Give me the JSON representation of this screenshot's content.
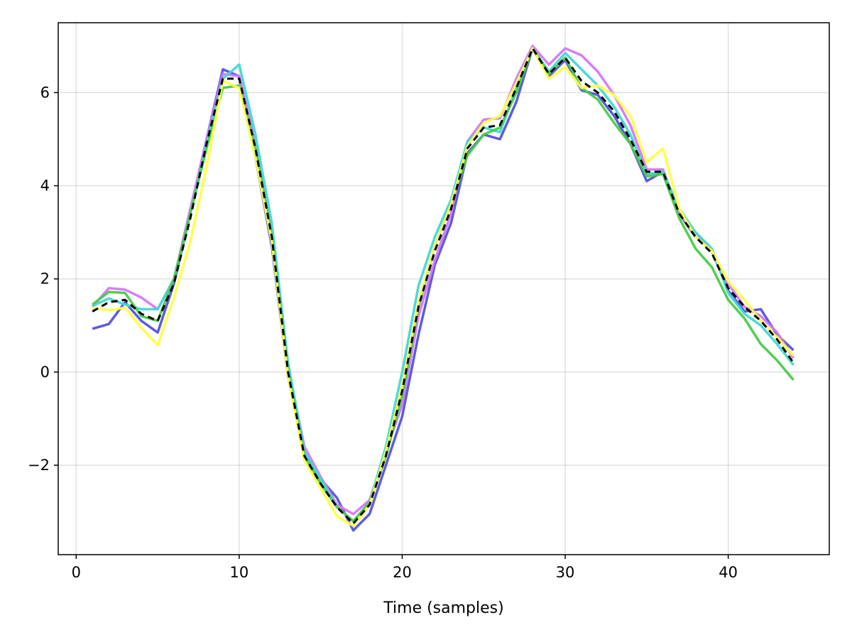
{
  "chart_data": {
    "type": "line",
    "title": "",
    "xlabel": "Time (samples)",
    "ylabel": "",
    "xlim": [
      -1.1,
      46.2
    ],
    "ylim": [
      -3.92,
      7.5
    ],
    "grid": true,
    "legend": "none",
    "x_ticks": [
      0,
      10,
      20,
      30,
      40
    ],
    "x_tick_labels": [
      "0",
      "10",
      "20",
      "30",
      "40"
    ],
    "y_ticks": [
      -2,
      0,
      2,
      4,
      6
    ],
    "y_tick_labels": [
      "−2",
      "0",
      "2",
      "4",
      "6"
    ],
    "x": [
      1,
      2,
      3,
      4,
      5,
      6,
      7,
      8,
      9,
      10,
      11,
      12,
      13,
      14,
      15,
      16,
      17,
      18,
      19,
      20,
      21,
      22,
      23,
      24,
      25,
      26,
      27,
      28,
      29,
      30,
      31,
      32,
      33,
      34,
      35,
      36,
      37,
      38,
      39,
      40,
      41,
      42,
      43,
      44
    ],
    "series": [
      {
        "color": "#5252e0",
        "style": "solid",
        "values": [
          0.93,
          1.03,
          1.5,
          1.1,
          0.85,
          1.9,
          3.4,
          5.0,
          6.5,
          6.35,
          4.6,
          2.7,
          -0.1,
          -1.75,
          -2.3,
          -2.7,
          -3.4,
          -3.05,
          -2.0,
          -0.95,
          0.8,
          2.3,
          3.2,
          4.7,
          5.1,
          5.0,
          5.8,
          6.95,
          6.35,
          6.7,
          6.05,
          5.95,
          5.5,
          4.9,
          4.1,
          4.3,
          3.4,
          2.9,
          2.6,
          1.75,
          1.3,
          1.35,
          0.8,
          0.47
        ]
      },
      {
        "color": "#d676ff",
        "style": "solid",
        "values": [
          1.4,
          1.8,
          1.77,
          1.6,
          1.35,
          2.0,
          3.5,
          5.0,
          6.4,
          6.35,
          4.9,
          3.0,
          0.1,
          -1.6,
          -2.25,
          -2.85,
          -3.05,
          -2.75,
          -1.7,
          -0.7,
          1.2,
          2.4,
          3.4,
          4.95,
          5.42,
          5.45,
          6.3,
          7.0,
          6.6,
          6.95,
          6.8,
          6.45,
          5.95,
          5.3,
          4.35,
          4.35,
          3.4,
          3.0,
          2.6,
          1.9,
          1.4,
          1.2,
          0.85,
          0.3
        ]
      },
      {
        "color": "#44d6d6",
        "style": "solid",
        "values": [
          1.42,
          1.58,
          1.45,
          1.35,
          1.35,
          2.0,
          3.4,
          4.9,
          6.3,
          6.6,
          5.1,
          3.2,
          0.2,
          -1.7,
          -2.3,
          -2.9,
          -3.2,
          -2.8,
          -1.6,
          0.0,
          1.85,
          2.9,
          3.7,
          4.95,
          5.25,
          5.15,
          6.1,
          6.95,
          6.45,
          6.85,
          6.5,
          6.15,
          5.7,
          5.1,
          4.25,
          4.3,
          3.5,
          3.0,
          2.65,
          1.7,
          1.25,
          1.0,
          0.6,
          0.15
        ]
      },
      {
        "color": "#48cc48",
        "style": "solid",
        "values": [
          1.45,
          1.72,
          1.7,
          1.2,
          1.1,
          2.0,
          3.4,
          4.8,
          6.1,
          6.15,
          4.8,
          2.9,
          0.0,
          -1.8,
          -2.4,
          -2.9,
          -3.2,
          -2.8,
          -1.8,
          -0.5,
          1.4,
          2.7,
          3.6,
          4.65,
          5.1,
          5.25,
          6.0,
          6.95,
          6.4,
          6.75,
          6.1,
          5.85,
          5.35,
          4.9,
          4.2,
          4.25,
          3.3,
          2.65,
          2.25,
          1.55,
          1.15,
          0.6,
          0.25,
          -0.17
        ]
      },
      {
        "color": "#ffff44",
        "style": "solid",
        "values": [
          1.38,
          1.33,
          1.38,
          0.95,
          0.58,
          1.6,
          2.8,
          4.4,
          6.25,
          6.1,
          4.6,
          2.8,
          -0.1,
          -1.9,
          -2.5,
          -3.1,
          -3.3,
          -2.85,
          -1.7,
          -0.3,
          1.5,
          2.7,
          3.6,
          4.85,
          5.35,
          5.5,
          6.2,
          6.95,
          6.3,
          6.55,
          6.1,
          6.15,
          5.95,
          5.5,
          4.5,
          4.8,
          3.5,
          2.9,
          2.6,
          1.95,
          1.55,
          1.1,
          0.75,
          0.35
        ]
      },
      {
        "color": "#000000",
        "style": "dashed",
        "values": [
          1.3,
          1.5,
          1.55,
          1.25,
          1.1,
          1.9,
          3.3,
          4.9,
          6.3,
          6.3,
          4.8,
          2.9,
          0.0,
          -1.8,
          -2.4,
          -2.9,
          -3.25,
          -2.85,
          -1.8,
          -0.4,
          1.4,
          2.6,
          3.5,
          4.8,
          5.25,
          5.3,
          6.1,
          6.95,
          6.4,
          6.75,
          6.25,
          6.0,
          5.6,
          5.0,
          4.3,
          4.3,
          3.4,
          2.9,
          2.55,
          1.8,
          1.4,
          1.1,
          0.7,
          0.2
        ]
      }
    ]
  }
}
